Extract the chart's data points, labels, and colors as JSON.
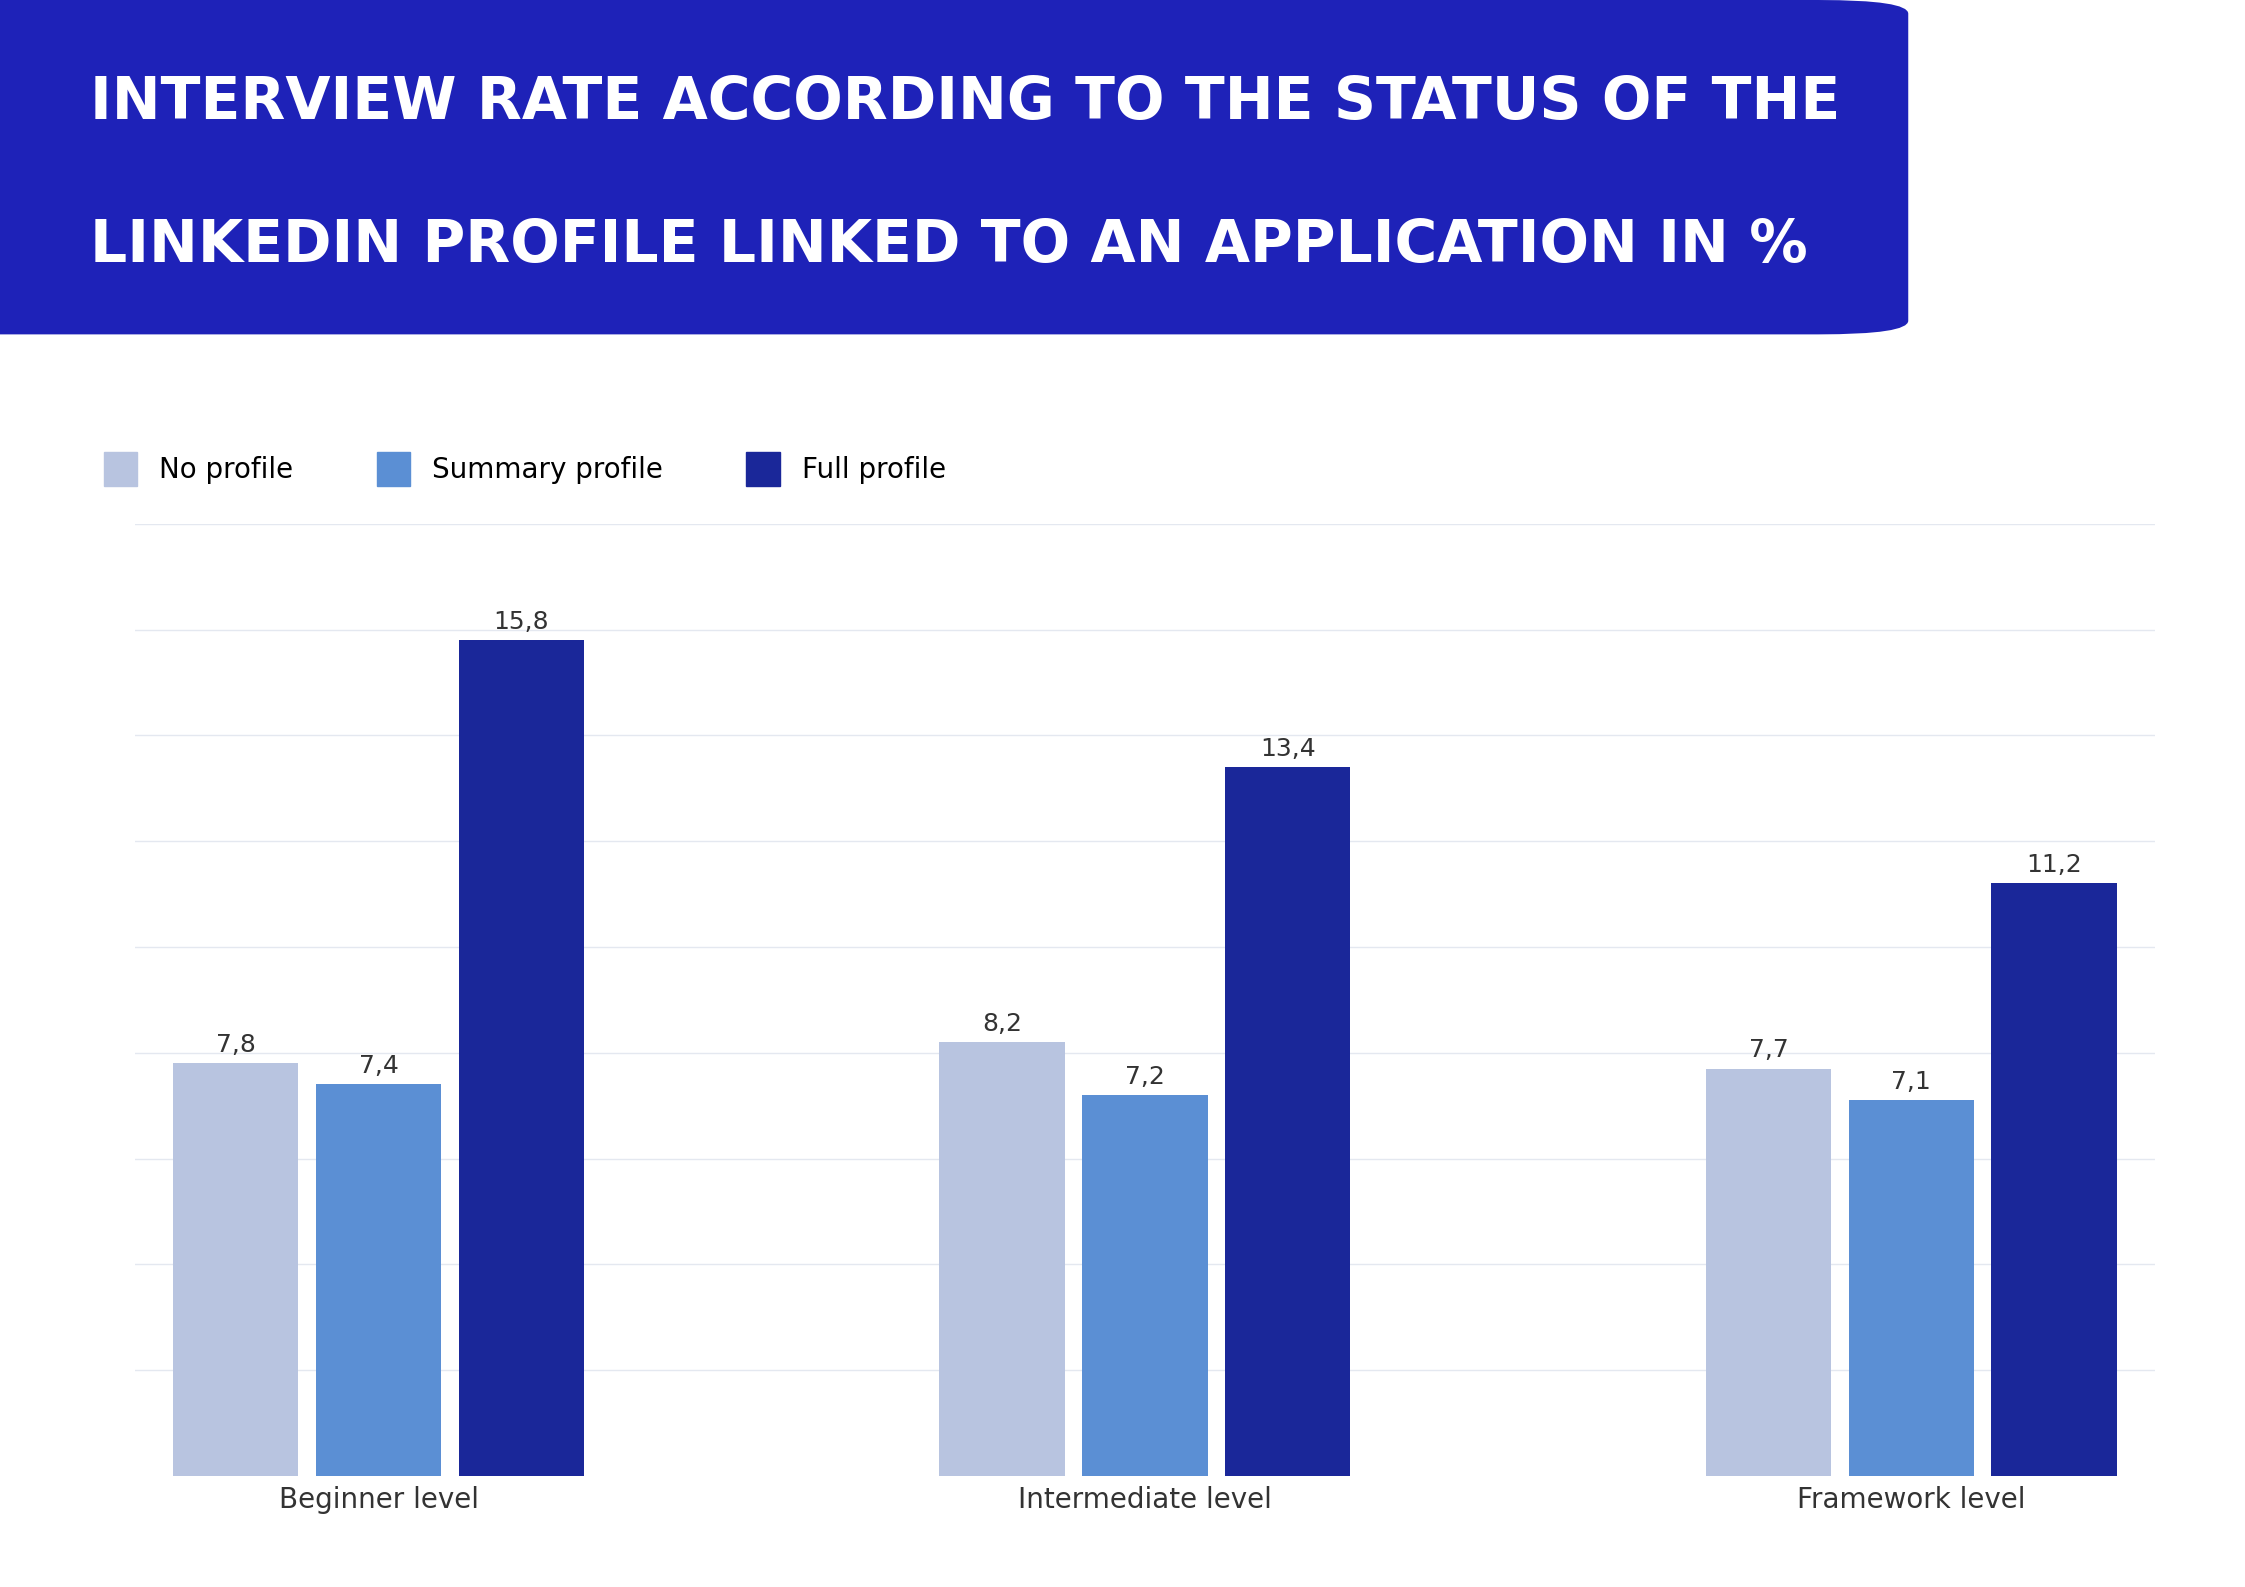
{
  "title_line1": "INTERVIEW RATE ACCORDING TO THE STATUS OF THE",
  "title_line2": "LINKEDIN PROFILE LINKED TO AN APPLICATION IN %",
  "title_bg_color": "#1e22b8",
  "title_text_color": "#ffffff",
  "categories": [
    "Beginner level",
    "Intermediate level",
    "Framework level"
  ],
  "series": [
    {
      "label": "No profile",
      "color": "#b8c4e0",
      "values": [
        7.8,
        8.2,
        7.7
      ]
    },
    {
      "label": "Summary profile",
      "color": "#5b8fd4",
      "values": [
        7.4,
        7.2,
        7.1
      ]
    },
    {
      "label": "Full profile",
      "color": "#1a2799",
      "values": [
        15.8,
        13.4,
        11.2
      ]
    }
  ],
  "value_labels": {
    "Beginner level": [
      "7,8",
      "7,4",
      "15,8"
    ],
    "Intermediate level": [
      "8,2",
      "7,2",
      "13,4"
    ],
    "Framework level": [
      "7,7",
      "7,1",
      "11,2"
    ]
  },
  "ylim": [
    0,
    18
  ],
  "bar_width": 0.18,
  "group_positions": [
    0.0,
    1.1,
    2.2
  ],
  "background_color": "#ffffff",
  "grid_color": "#e4e8f0",
  "xlabel_fontsize": 20,
  "value_fontsize": 18,
  "legend_fontsize": 20,
  "title_fontsize": 42
}
